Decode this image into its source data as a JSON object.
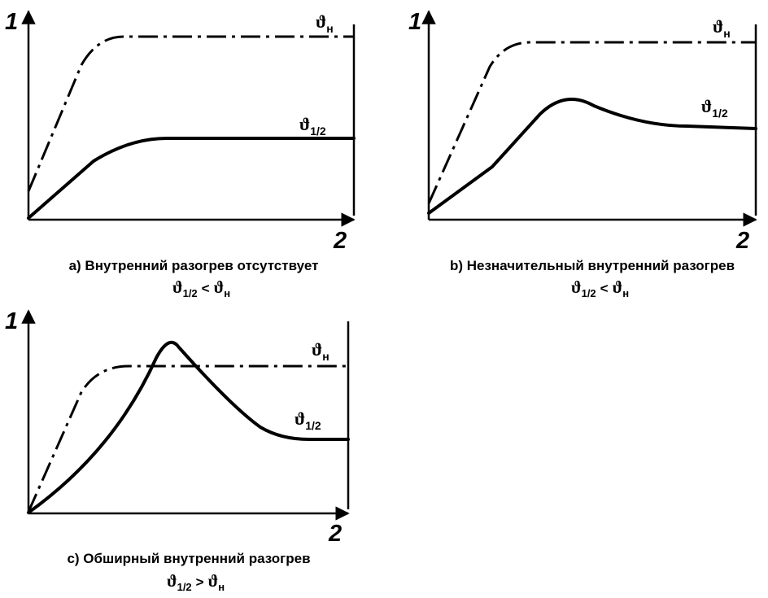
{
  "y_axis_label": "1",
  "x_axis_label": "2",
  "curve_symbol": "ϑ",
  "nominal_sub": "н",
  "half_sub": "1/2",
  "panels": [
    {
      "caption": "a) Внутренний разогрев отсутствует",
      "relation": "<"
    },
    {
      "caption": "b) Незначительный внутренний разогрев",
      "relation": "<"
    },
    {
      "caption": "c) Обширный внутренний разогрев",
      "relation": ">"
    }
  ]
}
